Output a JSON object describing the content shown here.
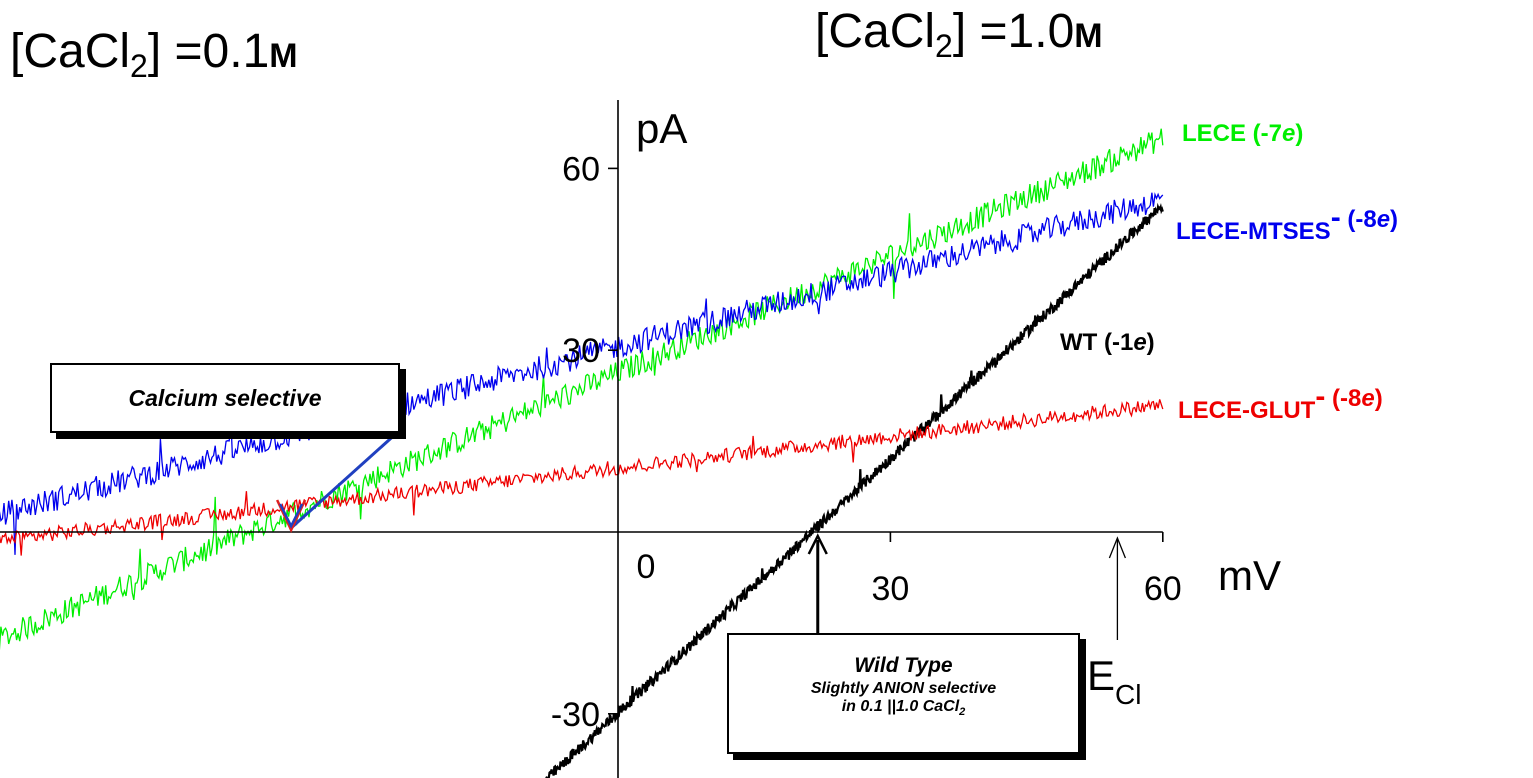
{
  "headers": {
    "left": {
      "prefix": "[CaCl",
      "sub": "2",
      "mid": "] =0.1",
      "unit": "M"
    },
    "right": {
      "prefix": "[CaCl",
      "sub": "2",
      "mid": "] =1.0",
      "unit": "M"
    }
  },
  "chart_data": {
    "type": "line",
    "xlabel": "mV",
    "ylabel": "pA",
    "xlim": [
      -95,
      60
    ],
    "ylim": [
      -39,
      69
    ],
    "x_ticks": [
      0,
      30,
      60
    ],
    "y_ticks": [
      -30,
      30,
      60
    ],
    "grid": false,
    "series": [
      {
        "name": "LECE  (-7e)",
        "label_parts": [
          "LECE  (-7",
          "e",
          ")"
        ],
        "color": "#00ee00",
        "start": [
          -95,
          -35
        ],
        "end": [
          60,
          65
        ],
        "noise": 2.0
      },
      {
        "name": "LECE-MTSES- (-8e)",
        "label_parts": [
          "LECE-MTSES",
          "-",
          "  (-8",
          "e",
          ")"
        ],
        "color": "#0000ee",
        "start": [
          -95,
          -8
        ],
        "end": [
          60,
          55
        ],
        "noise": 2.0
      },
      {
        "name": "LECE-GLUT- (-8e)",
        "label_parts": [
          "LECE-GLUT",
          "-",
          " (-8",
          "e",
          ")"
        ],
        "color": "#ee0000",
        "start": [
          -95,
          -6
        ],
        "end": [
          60,
          21
        ],
        "noise": 1.2
      },
      {
        "name": "WT  (-1e)",
        "label_parts": [
          "WT  (-1",
          "e",
          ")"
        ],
        "color": "#000000",
        "start": [
          -8,
          -41
        ],
        "end": [
          60,
          54
        ],
        "noise": 0.9
      }
    ],
    "annotations": [
      {
        "text": "Calcium selective",
        "points_to": [
          -36,
          0
        ]
      },
      {
        "lines": [
          "Wild Type",
          "Slightly ANION selective",
          "in 0.1 ||1.0 CaCl"
        ],
        "sub": "2",
        "points_to": [
          22,
          0
        ]
      },
      {
        "label": "E",
        "sub": "Cl",
        "points_to": [
          55,
          0
        ]
      }
    ]
  }
}
